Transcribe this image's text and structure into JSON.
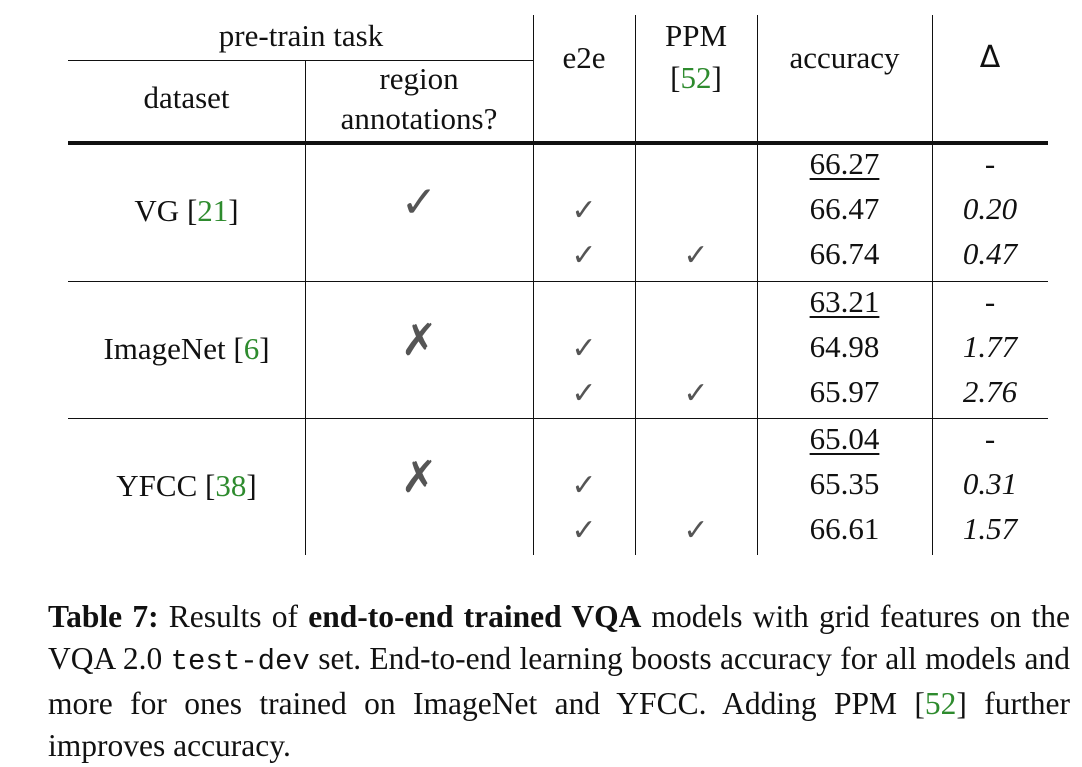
{
  "table": {
    "header": {
      "pretrain_task": "pre-train task",
      "dataset": "dataset",
      "region_line1": "region",
      "region_line2": "annotations?",
      "e2e": "e2e",
      "ppm": "PPM",
      "ppm_ref_open": "[",
      "ppm_ref": "52",
      "ppm_ref_close": "]",
      "accuracy": "accuracy",
      "delta": "Δ"
    },
    "groups": [
      {
        "dataset": "VG",
        "ref": "21",
        "region_mark": "✓",
        "rows": [
          {
            "e2e": "",
            "ppm": "",
            "accuracy": "66.27",
            "delta": "-"
          },
          {
            "e2e": "✓",
            "ppm": "",
            "accuracy": "66.47",
            "delta": "0.20"
          },
          {
            "e2e": "✓",
            "ppm": "✓",
            "accuracy": "66.74",
            "delta": "0.47"
          }
        ]
      },
      {
        "dataset": "ImageNet",
        "ref": "6",
        "region_mark": "✗",
        "rows": [
          {
            "e2e": "",
            "ppm": "",
            "accuracy": "63.21",
            "delta": "-"
          },
          {
            "e2e": "✓",
            "ppm": "",
            "accuracy": "64.98",
            "delta": "1.77"
          },
          {
            "e2e": "✓",
            "ppm": "✓",
            "accuracy": "65.97",
            "delta": "2.76"
          }
        ]
      },
      {
        "dataset": "YFCC",
        "ref": "38",
        "region_mark": "✗",
        "rows": [
          {
            "e2e": "",
            "ppm": "",
            "accuracy": "65.04",
            "delta": "-"
          },
          {
            "e2e": "✓",
            "ppm": "",
            "accuracy": "65.35",
            "delta": "0.31"
          },
          {
            "e2e": "✓",
            "ppm": "✓",
            "accuracy": "66.61",
            "delta": "1.57"
          }
        ]
      }
    ]
  },
  "caption": {
    "label": "Table 7:",
    "t1": " Results of ",
    "bold": "end-to-end trained VQA",
    "t2": " models with grid features on the VQA 2.0 ",
    "code": "test-dev",
    "t3": " set. End-to-end learning boosts accuracy for all models and more for ones trained on ImageNet and YFCC. Adding PPM [",
    "ref": "52",
    "t4": "] further improves accuracy."
  },
  "colors": {
    "link": "#2e8b2e",
    "mark": "#555555",
    "text": "#111111"
  }
}
